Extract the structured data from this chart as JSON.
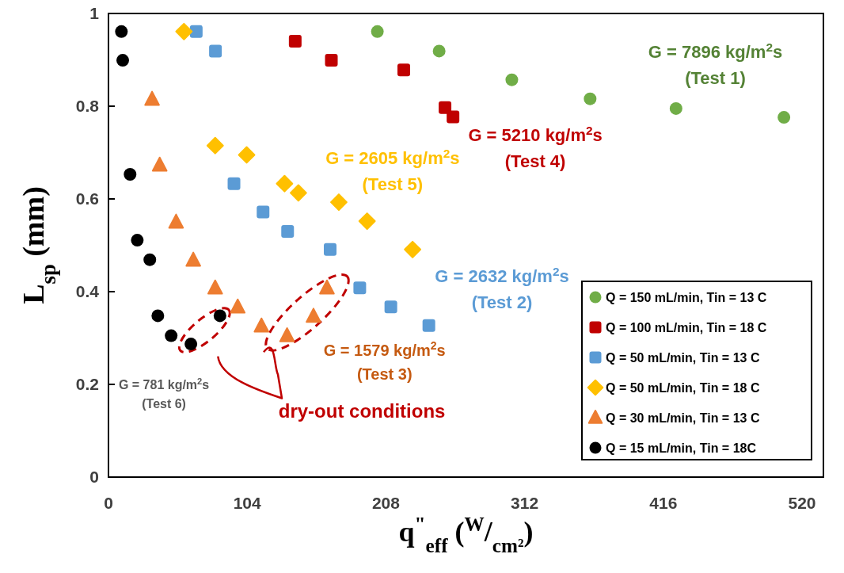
{
  "chart_data": {
    "type": "scatter",
    "xlabel": "q$^{\"}$$_{eff}$ ($^{W}$/$_{cm²}$)",
    "ylabel": "L$_{sp}$ (mm)",
    "xlim": [
      0,
      536
    ],
    "xticks": [
      0,
      104,
      208,
      312,
      416,
      520
    ],
    "ylim": [
      0,
      1
    ],
    "yticks": [
      0,
      0.2,
      0.4,
      0.6,
      0.8,
      1
    ],
    "grid": false,
    "legend": "bottom right",
    "series": [
      {
        "name": "Q = 150 mL/min, Tin = 13 C",
        "color": "#70ad47",
        "marker": "circle",
        "x": [
          201.6,
          247.9,
          302.4,
          361.1,
          425.5,
          506.4
        ],
        "values": [
          0.961,
          0.919,
          0.857,
          0.816,
          0.795,
          0.776
        ]
      },
      {
        "name": "Q = 100 mL/min, Tin = 18 C",
        "color": "#c00000",
        "marker": "square",
        "x": [
          140,
          167.1,
          221.4,
          252.3,
          258.3
        ],
        "values": [
          0.94,
          0.899,
          0.878,
          0.797,
          0.777
        ]
      },
      {
        "name": "Q = 50 mL/min, Tin = 13 C",
        "color": "#5b9bd5",
        "marker": "square",
        "x": [
          65.8,
          80.2,
          94.1,
          115.9,
          134.3,
          166.2,
          188.4,
          211.7,
          240.2
        ],
        "values": [
          0.961,
          0.919,
          0.633,
          0.572,
          0.53,
          0.491,
          0.408,
          0.367,
          0.327
        ]
      },
      {
        "name": "Q = 50 mL/min, Tin = 18 C",
        "color": "#ffc000",
        "marker": "diamond",
        "x": [
          56.6,
          80,
          103.6,
          132,
          142.4,
          172.7,
          193.9,
          228
        ],
        "values": [
          0.961,
          0.715,
          0.695,
          0.633,
          0.613,
          0.593,
          0.552,
          0.491
        ]
      },
      {
        "name": "Q = 30 mL/min, Tin = 13 C",
        "color": "#ed7d31",
        "marker": "triangle",
        "x": [
          32.7,
          38.4,
          50.7,
          63.6,
          80,
          96.9,
          114.7,
          133.9,
          153.7,
          163.8
        ],
        "values": [
          0.815,
          0.673,
          0.55,
          0.468,
          0.408,
          0.367,
          0.326,
          0.305,
          0.347,
          0.408
        ]
      },
      {
        "name": "Q = 15 mL/min, Tin = 18C",
        "color": "#000000",
        "marker": "circle",
        "x": [
          9.7,
          10.7,
          16.2,
          21.6,
          31,
          37,
          47,
          61.8,
          83.6
        ],
        "values": [
          0.961,
          0.899,
          0.653,
          0.511,
          0.469,
          0.348,
          0.305,
          0.287,
          0.348
        ]
      }
    ],
    "annotations": [
      "G = 7896 kg/m$^{2}$s\n(Test 1)",
      "G = 5210 kg/m$^{2}$s\n(Test 4)",
      "G = 2605 kg/m$^{2}$s\n(Test 5)",
      "G = 2632 kg/m$^{2}$s\n(Test 2)",
      "G = 1579 kg/m$^{2}$s\n(Test 3)",
      "G = 781 kg/m$^{2}$s\n(Test 6)",
      "dry-out conditions"
    ]
  }
}
